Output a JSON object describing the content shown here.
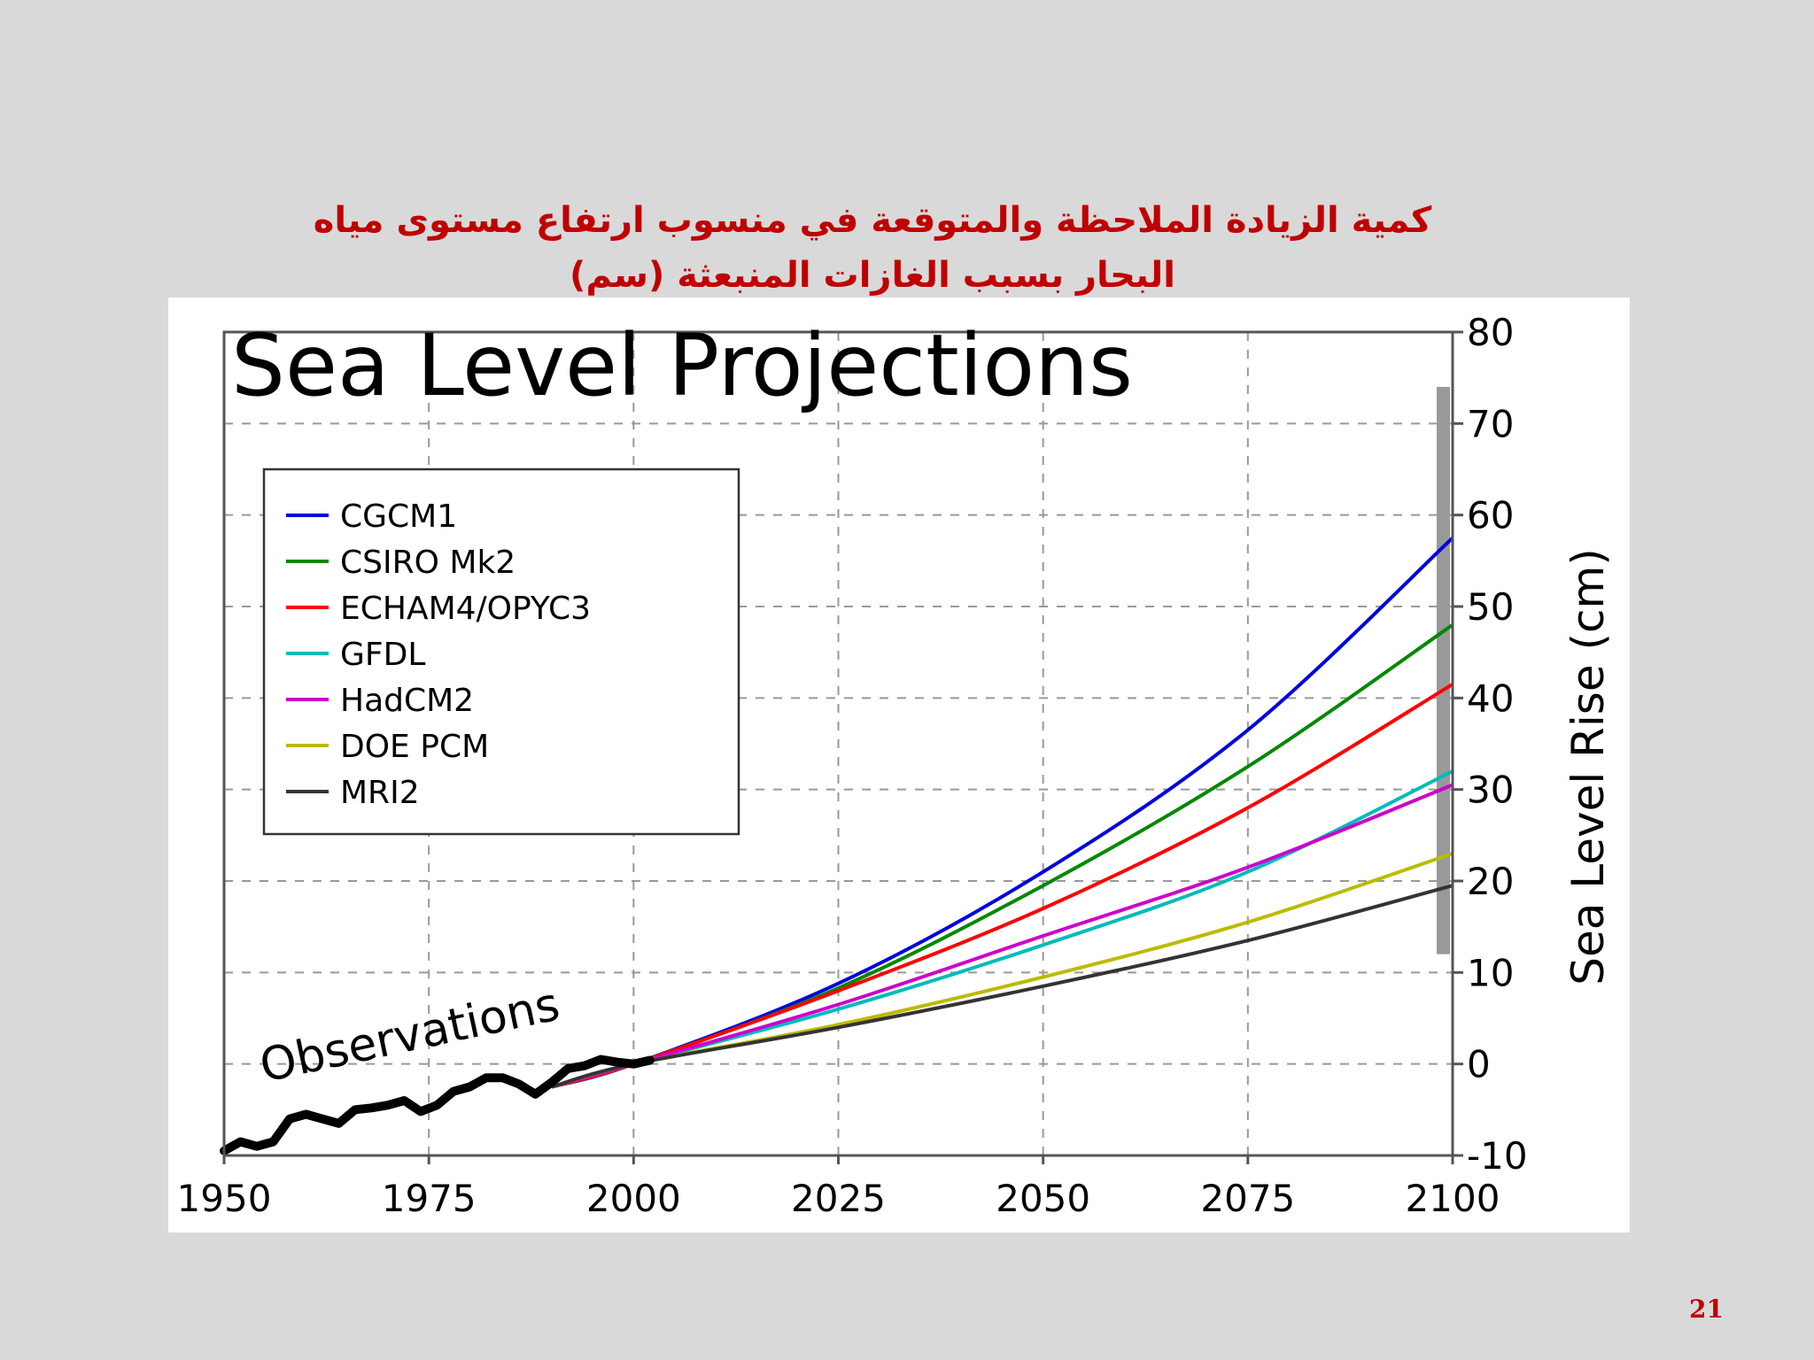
{
  "slide": {
    "title_line1": "كمية الزيادة الملاحظة والمتوقعة في منسوب ارتفاع مستوى مياه",
    "title_line2": "البحار بسبب الغازات المنبعثة (سم)",
    "page_number": "21",
    "title_color": "#c00000"
  },
  "chart_data": {
    "type": "line",
    "title": "Sea Level Projections",
    "xlabel": "",
    "ylabel": "Sea Level Rise (cm)",
    "xlim": [
      1950,
      2100
    ],
    "ylim": [
      -10,
      80
    ],
    "x_ticks": [
      "1950",
      "1975",
      "2000",
      "2025",
      "2050",
      "2075",
      "2100"
    ],
    "y_ticks": [
      "80",
      "70",
      "60",
      "50",
      "40",
      "30",
      "20",
      "10",
      "0",
      "-10"
    ],
    "grid": true,
    "y_axis_side": "right",
    "legend_position": "upper-left",
    "annotation": "Observations",
    "observations": {
      "color": "#000000",
      "x": [
        1950,
        1952,
        1954,
        1956,
        1958,
        1960,
        1962,
        1964,
        1966,
        1968,
        1970,
        1972,
        1974,
        1976,
        1978,
        1980,
        1982,
        1984,
        1986,
        1988,
        1990,
        1992,
        1994,
        1996,
        1998,
        2000,
        2002
      ],
      "y": [
        -9.5,
        -8.5,
        -9,
        -8.5,
        -6,
        -5.5,
        -6,
        -6.5,
        -5,
        -4.8,
        -4.5,
        -4,
        -5.2,
        -4.5,
        -3,
        -2.5,
        -1.5,
        -1.5,
        -2.2,
        -3.3,
        -2,
        -0.5,
        -0.2,
        0.5,
        0.2,
        0,
        0.4
      ]
    },
    "projection_range": {
      "min": 12,
      "max": 74,
      "color": "#999999"
    },
    "series": [
      {
        "name": "CGCM1",
        "color": "#0000dd",
        "x": [
          1990,
          2000,
          2025,
          2050,
          2075,
          2100
        ],
        "y": [
          -2.5,
          0,
          8.8,
          21,
          36.5,
          57.5
        ]
      },
      {
        "name": "CSIRO Mk2",
        "color": "#008800",
        "x": [
          1990,
          2000,
          2025,
          2050,
          2075,
          2100
        ],
        "y": [
          -2.5,
          0,
          8.3,
          19.5,
          32.5,
          48
        ]
      },
      {
        "name": "ECHAM4/OPYC3",
        "color": "#ff0000",
        "x": [
          1990,
          2000,
          2025,
          2050,
          2075,
          2100
        ],
        "y": [
          -2.5,
          0,
          8,
          17,
          28,
          41.5
        ]
      },
      {
        "name": "GFDL",
        "color": "#00bbbb",
        "x": [
          1990,
          2000,
          2025,
          2050,
          2075,
          2100
        ],
        "y": [
          -2.5,
          0,
          6,
          13,
          21,
          32
        ]
      },
      {
        "name": "HadCM2",
        "color": "#cc00cc",
        "x": [
          1990,
          2000,
          2025,
          2050,
          2075,
          2100
        ],
        "y": [
          -2.5,
          0,
          6.5,
          14,
          21.5,
          30.5
        ]
      },
      {
        "name": "DOE PCM",
        "color": "#bbbb00",
        "x": [
          1990,
          2000,
          2025,
          2050,
          2075,
          2100
        ],
        "y": [
          -2.5,
          0,
          4.3,
          9.5,
          15.5,
          23
        ]
      },
      {
        "name": "MRI2",
        "color": "#333333",
        "x": [
          1990,
          2000,
          2025,
          2050,
          2075,
          2100
        ],
        "y": [
          -2.5,
          0,
          4,
          8.5,
          13.5,
          19.5
        ]
      }
    ]
  }
}
